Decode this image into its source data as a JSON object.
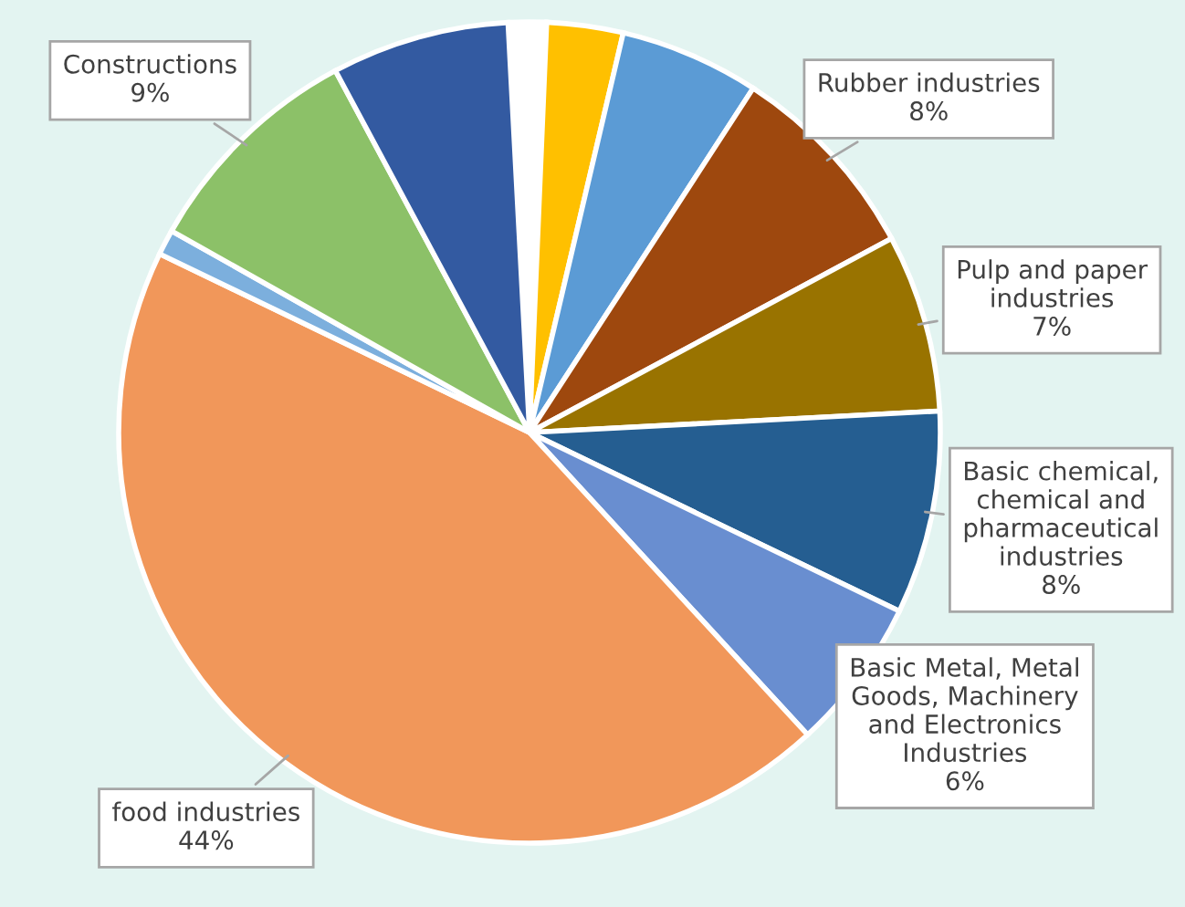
{
  "chart_data": {
    "type": "pie",
    "categories": [
      null,
      null,
      null,
      "Rubber industries",
      "Pulp and paper\nindustries",
      "Basic chemical,\nchemical and\npharmaceutical\nindustries",
      "Basic Metal, Metal\nGoods, Machinery\nand Electronics\nIndustries",
      "food industries",
      null,
      "Constructions",
      null
    ],
    "values": [
      1.5,
      3,
      5.5,
      8,
      7,
      8,
      6,
      44,
      1,
      9,
      7
    ],
    "value_labels": [
      null,
      null,
      null,
      "8%",
      "7%",
      "8%",
      "6%",
      "44%",
      null,
      "9%",
      null
    ],
    "colors": [
      "#ffffff",
      "#ffc000",
      "#5b9bd5",
      "#9e480e",
      "#997300",
      "#255e91",
      "#698ed0",
      "#f1975a",
      "#7cafdd",
      "#8cc168",
      "#335aa1"
    ]
  }
}
